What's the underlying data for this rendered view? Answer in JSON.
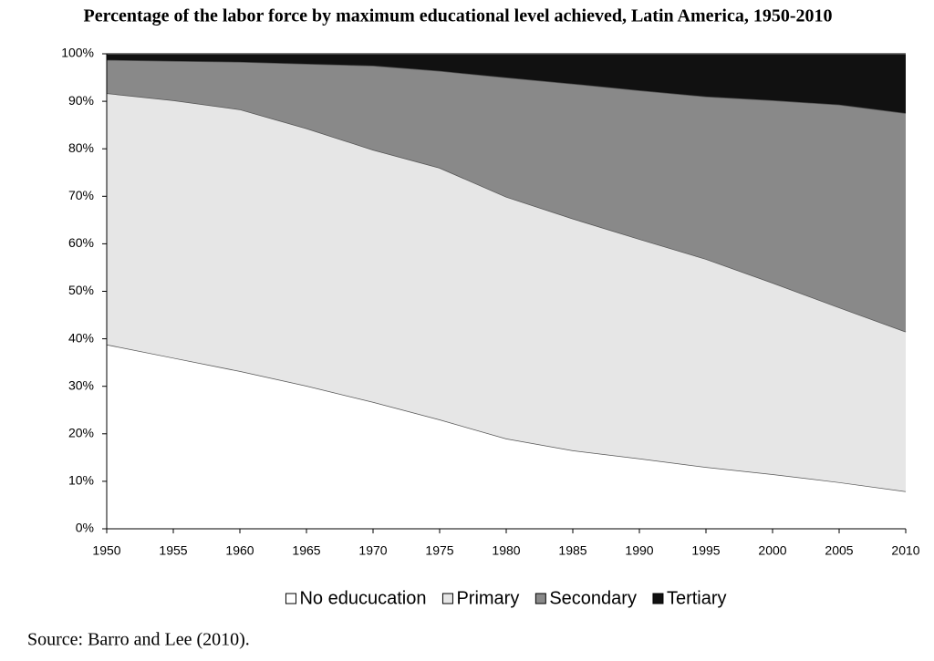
{
  "chart_data": {
    "type": "stacked-area",
    "title": "Percentage of the labor force by maximum educational level achieved, Latin America, 1950-2010",
    "source": "Source: Barro and Lee (2010).",
    "x": [
      1950,
      1955,
      1960,
      1965,
      1970,
      1975,
      1980,
      1985,
      1990,
      1995,
      2000,
      2005,
      2010
    ],
    "xlim": [
      1950,
      2010
    ],
    "series": [
      {
        "name": "No educucation",
        "color": "#ffffff",
        "values": [
          38.8,
          36.0,
          33.2,
          30.1,
          26.7,
          23.0,
          19.0,
          16.5,
          14.8,
          13.0,
          11.5,
          9.8,
          7.9
        ]
      },
      {
        "name": "Primary",
        "color": "#e6e6e6",
        "values": [
          52.9,
          54.2,
          55.1,
          54.2,
          53.1,
          53.0,
          50.9,
          48.8,
          46.2,
          43.8,
          40.3,
          36.8,
          33.6
        ]
      },
      {
        "name": "Secondary",
        "color": "#898989",
        "values": [
          7.0,
          8.3,
          10.0,
          13.6,
          17.7,
          20.4,
          25.1,
          28.4,
          31.3,
          34.2,
          38.4,
          42.7,
          46.0
        ]
      },
      {
        "name": "Tertiary",
        "color": "#111111",
        "values": [
          1.3,
          1.5,
          1.7,
          2.1,
          2.5,
          3.6,
          5.0,
          6.3,
          7.7,
          9.0,
          9.8,
          10.7,
          12.5
        ]
      }
    ],
    "ylim": [
      0,
      100
    ],
    "yticks": [
      {
        "value": 0,
        "label": "0%"
      },
      {
        "value": 10,
        "label": "10%"
      },
      {
        "value": 20,
        "label": "20%"
      },
      {
        "value": 30,
        "label": "30%"
      },
      {
        "value": 40,
        "label": "40%"
      },
      {
        "value": 50,
        "label": "50%"
      },
      {
        "value": 60,
        "label": "60%"
      },
      {
        "value": 70,
        "label": "70%"
      },
      {
        "value": 80,
        "label": "80%"
      },
      {
        "value": 90,
        "label": "90%"
      },
      {
        "value": 100,
        "label": "100%"
      }
    ],
    "legend": "bottom"
  }
}
